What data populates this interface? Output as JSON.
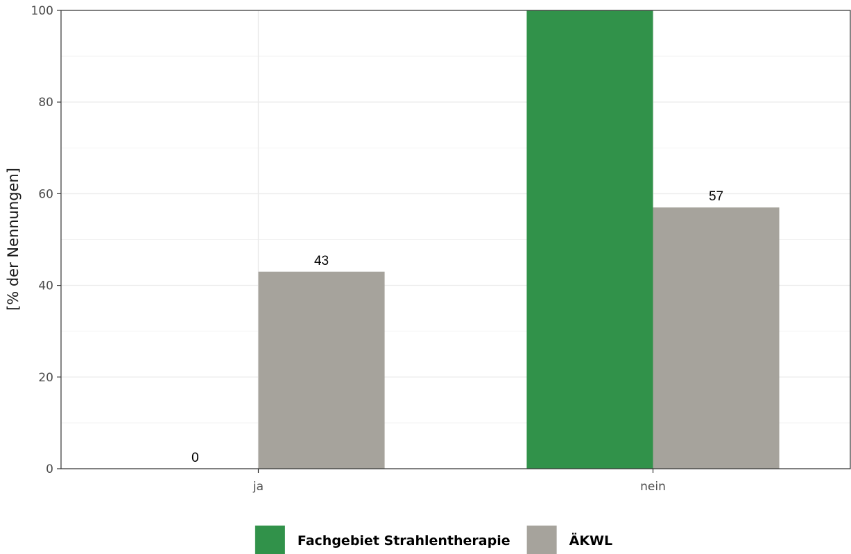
{
  "chart_data": {
    "type": "bar",
    "categories": [
      "ja",
      "nein"
    ],
    "series": [
      {
        "name": "Fachgebiet Strahlentherapie",
        "values": [
          0,
          100
        ],
        "labels": [
          "0",
          ""
        ],
        "color": "#31924a"
      },
      {
        "name": "ÄKWL",
        "values": [
          43,
          57
        ],
        "labels": [
          "43",
          "57"
        ],
        "color": "#a6a39c"
      }
    ],
    "ylabel": "[% der Nennungen]",
    "ylim": [
      0,
      100
    ],
    "yticks": [
      0,
      20,
      40,
      60,
      80,
      100
    ],
    "grid": true,
    "legend_position": "bottom"
  }
}
